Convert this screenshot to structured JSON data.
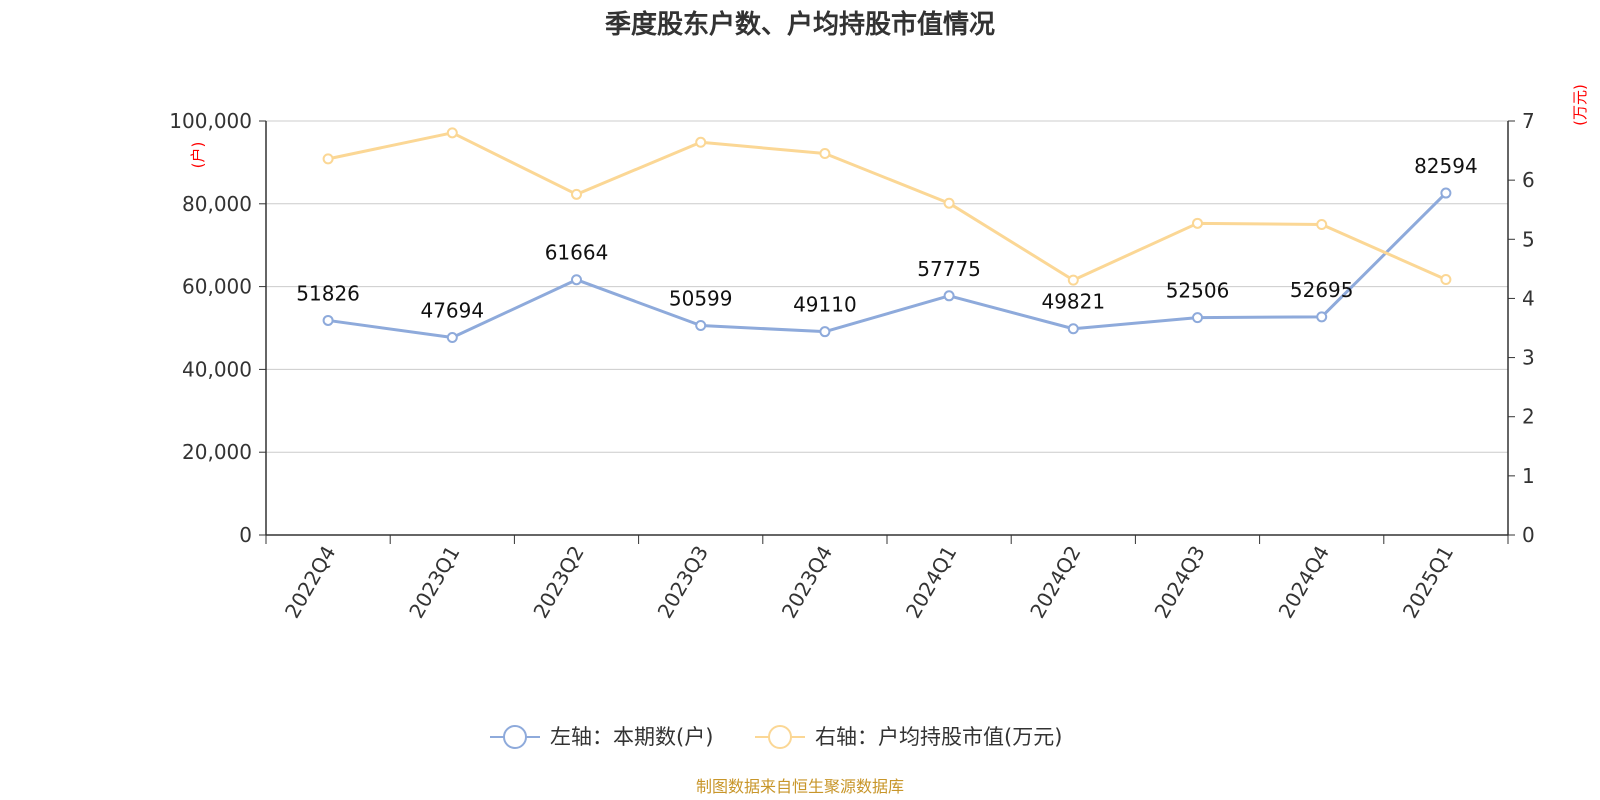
{
  "chart_data": {
    "type": "line",
    "title": "季度股东户数、户均持股市值情况",
    "categories": [
      "2022Q4",
      "2023Q1",
      "2023Q2",
      "2023Q3",
      "2023Q4",
      "2024Q1",
      "2024Q2",
      "2024Q3",
      "2024Q4",
      "2025Q1"
    ],
    "series": [
      {
        "name": "左轴：本期数(户)",
        "axis": "left",
        "color": "#8eaadb",
        "values": [
          51826,
          47694,
          61664,
          50599,
          49110,
          57775,
          49821,
          52506,
          52695,
          82594
        ],
        "data_labels": [
          "51826",
          "47694",
          "61664",
          "50599",
          "49110",
          "57775",
          "49821",
          "52506",
          "52695",
          "82594"
        ]
      },
      {
        "name": "右轴：户均持股市值(万元)",
        "axis": "right",
        "color": "#fbd795",
        "values": [
          6.36,
          6.8,
          5.76,
          6.64,
          6.45,
          5.61,
          4.31,
          5.27,
          5.25,
          4.32
        ]
      }
    ],
    "left_axis": {
      "unit": "(户)",
      "ylim": [
        0,
        100000
      ],
      "ticks": [
        0,
        20000,
        40000,
        60000,
        80000,
        100000
      ],
      "tick_labels": [
        "0",
        "20,000",
        "40,000",
        "60,000",
        "80,000",
        "100,000"
      ]
    },
    "right_axis": {
      "unit": "(万元)",
      "ylim": [
        0,
        7
      ],
      "ticks": [
        0,
        1,
        2,
        3,
        4,
        5,
        6,
        7
      ],
      "tick_labels": [
        "0",
        "1",
        "2",
        "3",
        "4",
        "5",
        "6",
        "7"
      ]
    },
    "grid": true,
    "legend_position": "bottom-center",
    "source": "制图数据来自恒生聚源数据库"
  }
}
